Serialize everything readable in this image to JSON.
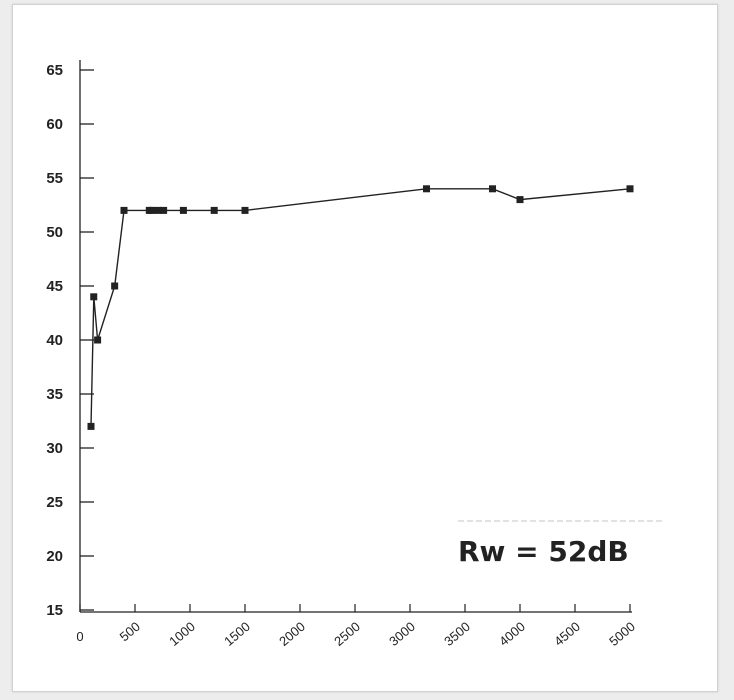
{
  "chart_data": {
    "type": "line",
    "title": "",
    "xlabel": "",
    "ylabel": "",
    "x": [
      100,
      125,
      160,
      315,
      400,
      630,
      650,
      710,
      760,
      940,
      1220,
      1500,
      3150,
      3750,
      4000,
      5000
    ],
    "series": [
      {
        "values": [
          32,
          44,
          40,
          45,
          52,
          52,
          52,
          52,
          52,
          52,
          52,
          52,
          54,
          54,
          53,
          54
        ]
      }
    ],
    "xlim": [
      0,
      5000
    ],
    "ylim": [
      15,
      65
    ],
    "x_ticks": [
      0,
      500,
      1000,
      1500,
      2000,
      2500,
      3000,
      3500,
      4000,
      4500,
      5000
    ],
    "y_ticks": [
      15,
      20,
      25,
      30,
      35,
      40,
      45,
      50,
      55,
      60,
      65
    ],
    "x_tick_labels": [
      "0",
      "500",
      "1000",
      "1500",
      "2000",
      "2500",
      "3000",
      "3500",
      "4000",
      "4500",
      "5000"
    ],
    "y_tick_labels": [
      "15",
      "20",
      "25",
      "30",
      "35",
      "40",
      "45",
      "50",
      "55",
      "60",
      "65"
    ],
    "grid": false,
    "line_color": "#222222",
    "marker": "square",
    "annotation": "Rw = 52dB"
  }
}
